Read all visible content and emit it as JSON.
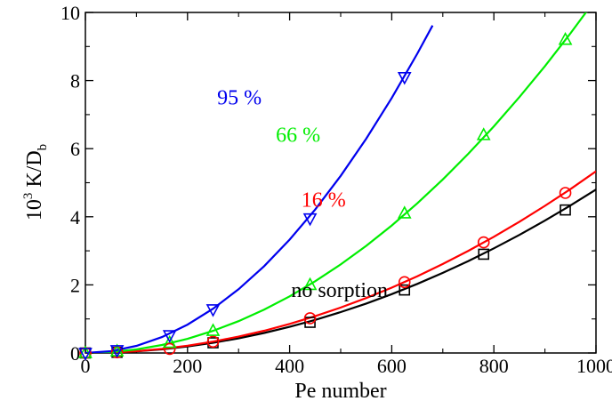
{
  "chart_data": {
    "type": "scatter",
    "title": "",
    "xlabel": "Pe number",
    "ylabel_main": "10",
    "ylabel_sup": "3",
    "ylabel_mid": " K/D",
    "ylabel_sub": "b",
    "xlim": [
      0,
      1000
    ],
    "ylim": [
      0,
      10
    ],
    "xticks": [
      0,
      200,
      400,
      600,
      800,
      1000
    ],
    "yticks": [
      0,
      2,
      4,
      6,
      8,
      10
    ],
    "grid": false,
    "legend": "none",
    "series": [
      {
        "label": "no sorption",
        "color": "#000000",
        "marker": "square",
        "x": [
          0,
          62,
          250,
          440,
          625,
          780,
          940
        ],
        "y": [
          0,
          0.02,
          0.3,
          0.9,
          1.85,
          2.9,
          4.2
        ],
        "fit_x": [
          0,
          50,
          100,
          150,
          200,
          250,
          300,
          350,
          400,
          450,
          500,
          550,
          600,
          650,
          700,
          750,
          800,
          850,
          900,
          950,
          1000
        ],
        "fit_y": [
          0,
          0.012,
          0.048,
          0.108,
          0.192,
          0.3,
          0.432,
          0.588,
          0.768,
          0.972,
          1.2,
          1.452,
          1.728,
          2.028,
          2.352,
          2.7,
          3.072,
          3.468,
          3.888,
          4.332,
          4.8
        ]
      },
      {
        "label": "16 %",
        "color": "#ff0000",
        "marker": "circle",
        "x": [
          0,
          62,
          165,
          250,
          440,
          625,
          780,
          940
        ],
        "y": [
          0,
          0.02,
          0.12,
          0.33,
          1.02,
          2.08,
          3.25,
          4.7
        ],
        "fit_x": [
          0,
          50,
          100,
          150,
          200,
          250,
          300,
          350,
          400,
          450,
          500,
          550,
          600,
          650,
          700,
          750,
          800,
          850,
          900,
          950,
          1000
        ],
        "fit_y": [
          0,
          0.013,
          0.053,
          0.12,
          0.213,
          0.333,
          0.48,
          0.653,
          0.853,
          1.08,
          1.333,
          1.613,
          1.92,
          2.253,
          2.613,
          3.0,
          3.413,
          3.853,
          4.32,
          4.813,
          5.333
        ]
      },
      {
        "label": "66 %",
        "color": "#00ee00",
        "marker": "triangle-up",
        "x": [
          0,
          62,
          165,
          250,
          440,
          625,
          780,
          940
        ],
        "y": [
          0,
          0.05,
          0.3,
          0.65,
          2.0,
          4.1,
          6.4,
          9.2
        ],
        "fit_x": [
          0,
          50,
          100,
          150,
          200,
          250,
          300,
          350,
          400,
          450,
          500,
          550,
          600,
          650,
          700,
          750,
          800,
          850,
          900,
          950,
          1000
        ],
        "fit_y": [
          0,
          0.026,
          0.104,
          0.234,
          0.416,
          0.65,
          0.936,
          1.274,
          1.664,
          2.106,
          2.6,
          3.146,
          3.744,
          4.394,
          5.096,
          5.85,
          6.656,
          7.514,
          8.424,
          9.386,
          10.4
        ]
      },
      {
        "label": "95 %",
        "color": "#0000ee",
        "marker": "triangle-down",
        "x": [
          0,
          62,
          165,
          250,
          440,
          625
        ],
        "y": [
          0,
          0.08,
          0.52,
          1.28,
          3.95,
          8.1
        ],
        "fit_x": [
          0,
          50,
          100,
          150,
          200,
          250,
          300,
          350,
          400,
          450,
          500,
          550,
          600,
          650,
          680
        ],
        "fit_y": [
          0,
          0.052,
          0.208,
          0.468,
          0.832,
          1.3,
          1.872,
          2.548,
          3.328,
          4.212,
          5.2,
          6.292,
          7.488,
          8.788,
          9.617
        ]
      }
    ],
    "annotations": [
      {
        "text": "95 %",
        "color": "#0000ee",
        "x": 258,
        "y": 7.3
      },
      {
        "text": "66 %",
        "color": "#00ee00",
        "x": 373,
        "y": 6.2
      },
      {
        "text": "16 %",
        "color": "#ff0000",
        "x": 423,
        "y": 4.3
      },
      {
        "text": "no sorption",
        "color": "#000000",
        "x": 403,
        "y": 1.65
      }
    ]
  }
}
